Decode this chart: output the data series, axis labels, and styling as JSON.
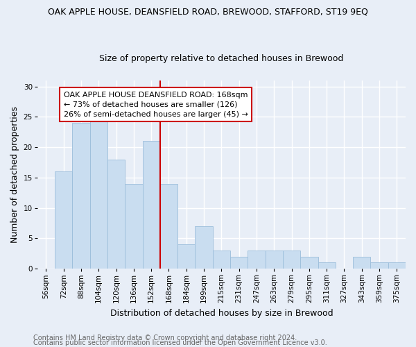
{
  "title": "OAK APPLE HOUSE, DEANSFIELD ROAD, BREWOOD, STAFFORD, ST19 9EQ",
  "subtitle": "Size of property relative to detached houses in Brewood",
  "xlabel": "Distribution of detached houses by size in Brewood",
  "ylabel": "Number of detached properties",
  "categories": [
    "56sqm",
    "72sqm",
    "88sqm",
    "104sqm",
    "120sqm",
    "136sqm",
    "152sqm",
    "168sqm",
    "184sqm",
    "199sqm",
    "215sqm",
    "231sqm",
    "247sqm",
    "263sqm",
    "279sqm",
    "295sqm",
    "311sqm",
    "327sqm",
    "343sqm",
    "359sqm",
    "375sqm"
  ],
  "values": [
    0,
    16,
    24,
    25,
    18,
    14,
    21,
    14,
    4,
    7,
    3,
    2,
    3,
    3,
    3,
    2,
    1,
    0,
    2,
    1,
    1
  ],
  "bar_color": "#c9ddf0",
  "bar_edge_color": "#9bbddb",
  "highlight_line_color": "#cc0000",
  "highlight_line_index": 7,
  "annotation_title": "OAK APPLE HOUSE DEANSFIELD ROAD: 168sqm",
  "annotation_line1": "← 73% of detached houses are smaller (126)",
  "annotation_line2": "26% of semi-detached houses are larger (45) →",
  "annotation_box_color": "#ffffff",
  "annotation_box_edge_color": "#cc0000",
  "ylim": [
    0,
    31
  ],
  "yticks": [
    0,
    5,
    10,
    15,
    20,
    25,
    30
  ],
  "footer1": "Contains HM Land Registry data © Crown copyright and database right 2024.",
  "footer2": "Contains public sector information licensed under the Open Government Licence v3.0.",
  "background_color": "#e8eef7",
  "plot_background_color": "#e8eef7",
  "grid_color": "#ffffff",
  "title_fontsize": 9,
  "subtitle_fontsize": 9,
  "axis_label_fontsize": 9,
  "tick_fontsize": 7.5,
  "annotation_fontsize": 8,
  "footer_fontsize": 7
}
